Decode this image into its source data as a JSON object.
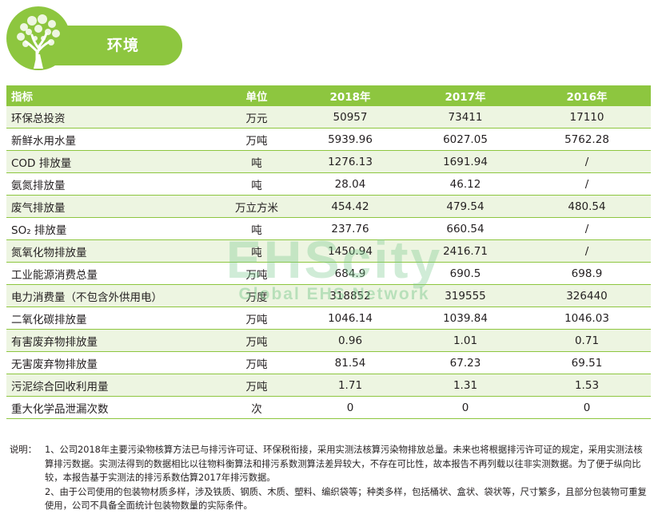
{
  "section_title": "环境",
  "table": {
    "headers": [
      "指标",
      "单位",
      "2018年",
      "2017年",
      "2016年"
    ],
    "rows": [
      [
        "环保总投资",
        "万元",
        "50957",
        "73411",
        "17110"
      ],
      [
        "新鲜水用水量",
        "万吨",
        "5939.96",
        "6027.05",
        "5762.28"
      ],
      [
        "COD 排放量",
        "吨",
        "1276.13",
        "1691.94",
        "/"
      ],
      [
        "氨氮排放量",
        "吨",
        "28.04",
        "46.12",
        "/"
      ],
      [
        "废气排放量",
        "万立方米",
        "454.42",
        "479.54",
        "480.54"
      ],
      [
        "SO₂ 排放量",
        "吨",
        "237.76",
        "660.54",
        "/"
      ],
      [
        "氮氧化物排放量",
        "吨",
        "1450.94",
        "2416.71",
        "/"
      ],
      [
        "工业能源消费总量",
        "万吨",
        "684.9",
        "690.5",
        "698.9"
      ],
      [
        "电力消费量（不包含外供用电）",
        "万度",
        "318852",
        "319555",
        "326440"
      ],
      [
        "二氧化碳排放量",
        "万吨",
        "1046.14",
        "1039.84",
        "1046.03"
      ],
      [
        "有害废弃物排放量",
        "万吨",
        "0.96",
        "1.01",
        "0.71"
      ],
      [
        "无害废弃物排放量",
        "万吨",
        "81.54",
        "67.23",
        "69.51"
      ],
      [
        "污泥综合回收利用量",
        "万吨",
        "1.71",
        "1.31",
        "1.53"
      ],
      [
        "重大化学品泄漏次数",
        "次",
        "0",
        "0",
        "0"
      ]
    ]
  },
  "watermark": {
    "main": "EHScity",
    "sub": "Global EHS Network"
  },
  "notes": {
    "label": "说明：",
    "items": [
      "1、公司2018年主要污染物核算方法已与排污许可证、环保税衔接，采用实测法核算污染物排放总量。未来也将根据排污许可证的规定，采用实测法核算排污数据。实测法得到的数据相比以往物料衡算法和排污系数测算法差异较大，不存在可比性，故本报告不再列载以往非实测数据。为了便于纵向比较，本报告基于实测法的排污系数估算2017年排污数据。",
      "2、由于公司使用的包装物材质多样，涉及铁质、钢质、木质、塑料、编织袋等；种类多样，包括桶状、盒状、袋状等，尺寸繁多，且部分包装物可重复使用，公司不具备全面统计包装物数量的实际条件。"
    ]
  },
  "colors": {
    "accent_green": "#8dc63f",
    "row_alt": "#edf5e1",
    "watermark": "#78c88c"
  },
  "icons": {
    "header_logo": "tree-icon"
  }
}
